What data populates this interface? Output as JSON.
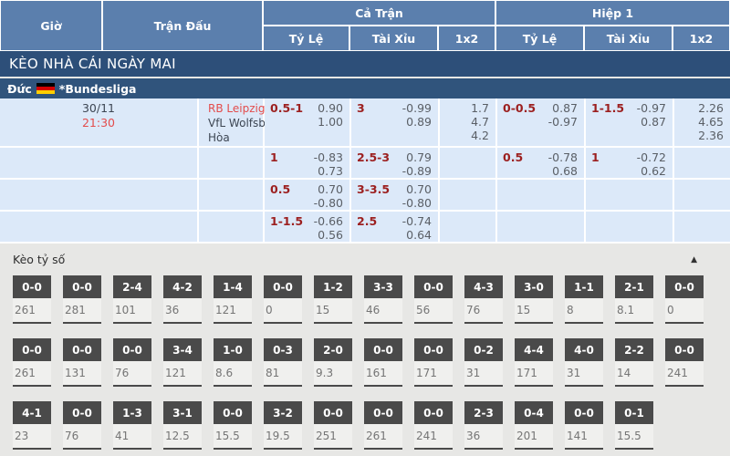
{
  "colors": {
    "header_blue": "#5b7fad",
    "navy": "#2d4f79",
    "league_navy": "#30547c",
    "row_blue": "#dce9f9",
    "handicap_red": "#9c2020",
    "odds_gray": "#5a5f66",
    "text_dark": "#3d4653",
    "accent_red": "#e34c4c",
    "score_box": "#4a4a4a",
    "section_bg": "#e7e7e5",
    "cell_bg": "#f0f0ee",
    "value_gray": "#757575"
  },
  "header": {
    "time": "Giờ",
    "match": "Trận Đấu",
    "full_match": "Cả Trận",
    "first_half": "Hiệp 1",
    "odds": "Tỷ Lệ",
    "over_under": "Tài Xỉu",
    "one_x_two": "1x2"
  },
  "banner": {
    "title": "KÈO NHÀ CÁI NGÀY MAI"
  },
  "league": {
    "country": "Đức",
    "name": "*Bundesliga",
    "flag_icon": "germany-flag"
  },
  "match": {
    "date": "30/11",
    "time": "21:30",
    "home": "RB Leipzig",
    "away": "VfL Wolfsburg",
    "draw": "Hòa"
  },
  "odds_rows": [
    {
      "ft_hdp": {
        "line": "0.5-1",
        "vals": [
          "0.90",
          "1.00"
        ]
      },
      "ft_ou": {
        "line": "3",
        "vals": [
          "-0.99",
          "0.89"
        ]
      },
      "ft_1x2": [
        "1.7",
        "4.7",
        "4.2"
      ],
      "h1_hdp": {
        "line": "0-0.5",
        "vals": [
          "0.87",
          "-0.97"
        ]
      },
      "h1_ou": {
        "line": "1-1.5",
        "vals": [
          "-0.97",
          "0.87"
        ]
      },
      "h1_1x2": [
        "2.26",
        "4.65",
        "2.36"
      ]
    },
    {
      "ft_hdp": {
        "line": "1",
        "vals": [
          "-0.83",
          "0.73"
        ]
      },
      "ft_ou": {
        "line": "2.5-3",
        "vals": [
          "0.79",
          "-0.89"
        ]
      },
      "ft_1x2": [],
      "h1_hdp": {
        "line": "0.5",
        "vals": [
          "-0.78",
          "0.68"
        ]
      },
      "h1_ou": {
        "line": "1",
        "vals": [
          "-0.72",
          "0.62"
        ]
      },
      "h1_1x2": []
    },
    {
      "ft_hdp": {
        "line": "0.5",
        "vals": [
          "0.70",
          "-0.80"
        ]
      },
      "ft_ou": {
        "line": "3-3.5",
        "vals": [
          "0.70",
          "-0.80"
        ]
      },
      "ft_1x2": [],
      "h1_hdp": null,
      "h1_ou": null,
      "h1_1x2": []
    },
    {
      "ft_hdp": {
        "line": "1-1.5",
        "vals": [
          "-0.66",
          "0.56"
        ]
      },
      "ft_ou": {
        "line": "2.5",
        "vals": [
          "-0.74",
          "0.64"
        ]
      },
      "ft_1x2": [],
      "h1_hdp": null,
      "h1_ou": null,
      "h1_1x2": []
    }
  ],
  "score_section": {
    "title": "Kèo tỷ số",
    "collapse_arrow": "▲",
    "rows": [
      [
        {
          "score": "0-0",
          "value": "261"
        },
        {
          "score": "0-0",
          "value": "281"
        },
        {
          "score": "2-4",
          "value": "101"
        },
        {
          "score": "4-2",
          "value": "36"
        },
        {
          "score": "1-4",
          "value": "121"
        },
        {
          "score": "0-0",
          "value": "0"
        },
        {
          "score": "1-2",
          "value": "15"
        },
        {
          "score": "3-3",
          "value": "46"
        },
        {
          "score": "0-0",
          "value": "56"
        },
        {
          "score": "4-3",
          "value": "76"
        },
        {
          "score": "3-0",
          "value": "15"
        },
        {
          "score": "1-1",
          "value": "8"
        },
        {
          "score": "2-1",
          "value": "8.1"
        },
        {
          "score": "0-0",
          "value": "0"
        }
      ],
      [
        {
          "score": "0-0",
          "value": "261"
        },
        {
          "score": "0-0",
          "value": "131"
        },
        {
          "score": "0-0",
          "value": "76"
        },
        {
          "score": "3-4",
          "value": "121"
        },
        {
          "score": "1-0",
          "value": "8.6"
        },
        {
          "score": "0-3",
          "value": "81"
        },
        {
          "score": "2-0",
          "value": "9.3"
        },
        {
          "score": "0-0",
          "value": "161"
        },
        {
          "score": "0-0",
          "value": "171"
        },
        {
          "score": "0-2",
          "value": "31"
        },
        {
          "score": "4-4",
          "value": "171"
        },
        {
          "score": "4-0",
          "value": "31"
        },
        {
          "score": "2-2",
          "value": "14"
        },
        {
          "score": "0-0",
          "value": "241"
        }
      ],
      [
        {
          "score": "4-1",
          "value": "23"
        },
        {
          "score": "0-0",
          "value": "76"
        },
        {
          "score": "1-3",
          "value": "41"
        },
        {
          "score": "3-1",
          "value": "12.5"
        },
        {
          "score": "0-0",
          "value": "15.5"
        },
        {
          "score": "3-2",
          "value": "19.5"
        },
        {
          "score": "0-0",
          "value": "251"
        },
        {
          "score": "0-0",
          "value": "261"
        },
        {
          "score": "0-0",
          "value": "241"
        },
        {
          "score": "2-3",
          "value": "36"
        },
        {
          "score": "0-4",
          "value": "201"
        },
        {
          "score": "0-0",
          "value": "141"
        },
        {
          "score": "0-1",
          "value": "15.5"
        }
      ]
    ]
  }
}
